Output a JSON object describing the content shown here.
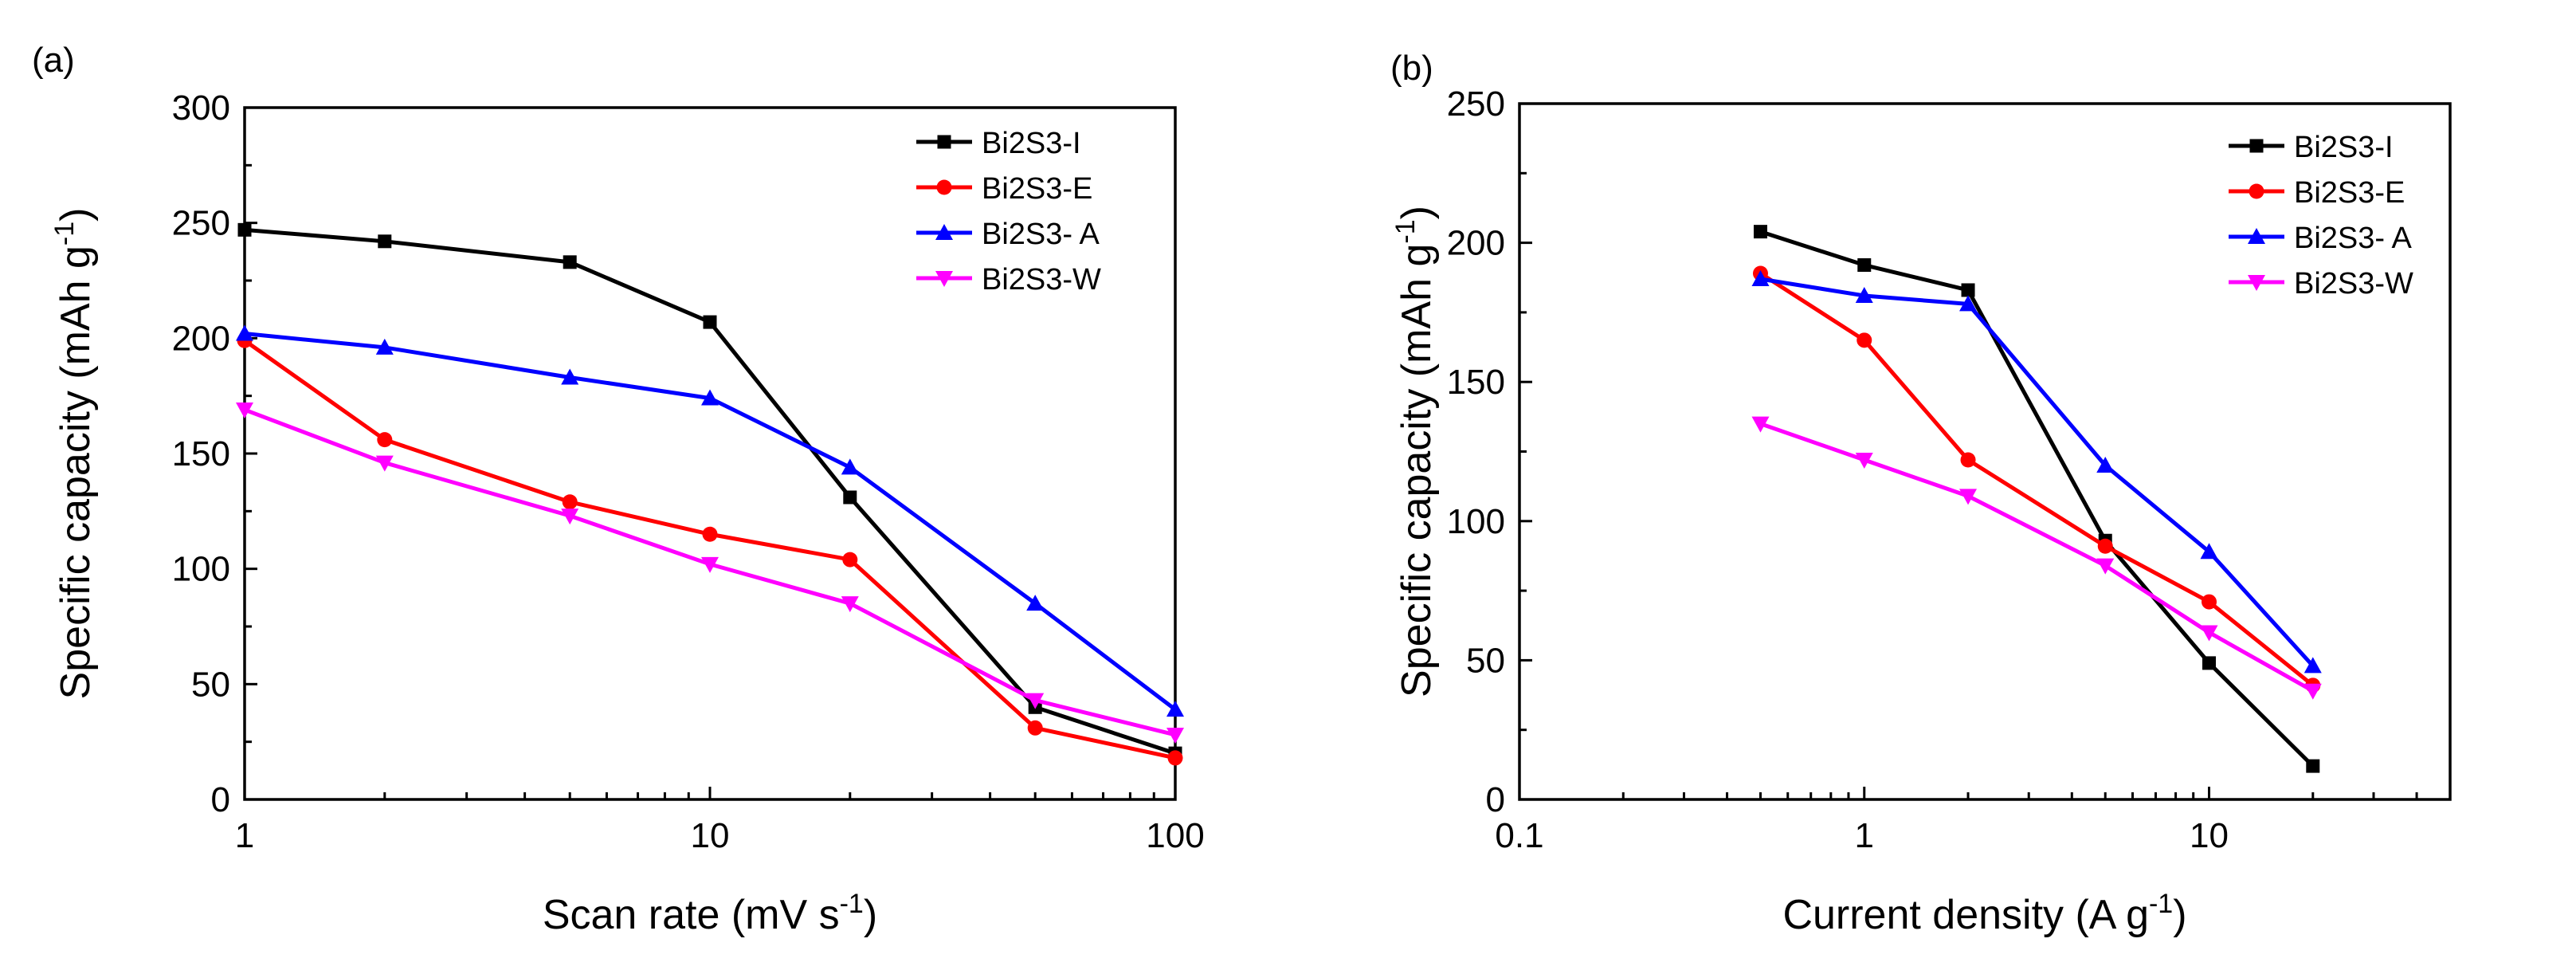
{
  "chart_data": [
    {
      "panel_label": "(a)",
      "type": "line",
      "x_scale": "log",
      "xlabel": "Scan rate (mV s",
      "xlabel_sup": "-1",
      "xlabel_end": ")",
      "ylabel": "Specific capacity (mAh g",
      "ylabel_sup": "-1",
      "ylabel_end": ")",
      "xlim": [
        1,
        100
      ],
      "ylim": [
        0,
        300
      ],
      "x_ticks": [
        {
          "value": 1,
          "label": "1"
        },
        {
          "value": 10,
          "label": "10"
        },
        {
          "value": 100,
          "label": "100"
        }
      ],
      "y_ticks": [
        {
          "value": 0,
          "label": "0"
        },
        {
          "value": 50,
          "label": "50"
        },
        {
          "value": 100,
          "label": "100"
        },
        {
          "value": 150,
          "label": "150"
        },
        {
          "value": 200,
          "label": "200"
        },
        {
          "value": 250,
          "label": "250"
        },
        {
          "value": 300,
          "label": "300"
        }
      ],
      "grid": false,
      "legend_position": "top-right",
      "x": [
        1,
        2,
        5,
        10,
        20,
        50,
        100
      ],
      "series": [
        {
          "name": "Bi2S3-I",
          "color": "#000000",
          "marker": "square",
          "values": [
            247,
            242,
            233,
            207,
            131,
            40,
            20
          ]
        },
        {
          "name": "Bi2S3-E",
          "color": "#ff0000",
          "marker": "circle",
          "values": [
            199,
            156,
            129,
            115,
            104,
            31,
            18
          ]
        },
        {
          "name": "Bi2S3- A",
          "color": "#0000ff",
          "marker": "triangle-up",
          "values": [
            202,
            196,
            183,
            174,
            144,
            85,
            39
          ]
        },
        {
          "name": "Bi2S3-W",
          "color": "#ff00ff",
          "marker": "triangle-down",
          "values": [
            169,
            146,
            123,
            102,
            85,
            43,
            28
          ]
        }
      ]
    },
    {
      "panel_label": "(b)",
      "type": "line",
      "x_scale": "log",
      "xlabel": "Current density (A g",
      "xlabel_sup": "-1",
      "xlabel_end": ")",
      "ylabel": "Specific capacity (mAh g",
      "ylabel_sup": "-1",
      "ylabel_end": ")",
      "xlim": [
        0.1,
        50
      ],
      "ylim": [
        0,
        250
      ],
      "x_ticks": [
        {
          "value": 0.1,
          "label": "0.1"
        },
        {
          "value": 1,
          "label": "1"
        },
        {
          "value": 10,
          "label": "10"
        }
      ],
      "y_ticks": [
        {
          "value": 0,
          "label": "0"
        },
        {
          "value": 50,
          "label": "50"
        },
        {
          "value": 100,
          "label": "100"
        },
        {
          "value": 150,
          "label": "150"
        },
        {
          "value": 200,
          "label": "200"
        },
        {
          "value": 250,
          "label": "250"
        }
      ],
      "grid": false,
      "legend_position": "top-right",
      "x": [
        0.5,
        1,
        2,
        5,
        10,
        20
      ],
      "series": [
        {
          "name": "Bi2S3-I",
          "color": "#000000",
          "marker": "square",
          "values": [
            204,
            192,
            183,
            93,
            49,
            12
          ]
        },
        {
          "name": "Bi2S3-E",
          "color": "#ff0000",
          "marker": "circle",
          "values": [
            189,
            165,
            122,
            91,
            71,
            41
          ]
        },
        {
          "name": "Bi2S3- A",
          "color": "#0000ff",
          "marker": "triangle-up",
          "values": [
            187,
            181,
            178,
            120,
            89,
            48
          ]
        },
        {
          "name": "Bi2S3-W",
          "color": "#ff00ff",
          "marker": "triangle-down",
          "values": [
            135,
            122,
            109,
            84,
            60,
            39
          ]
        }
      ]
    }
  ]
}
